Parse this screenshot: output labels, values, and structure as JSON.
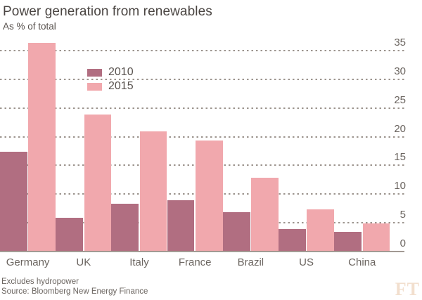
{
  "header": {
    "title": "Power generation from renewables",
    "subtitle": "As % of total"
  },
  "chart_data": {
    "type": "bar",
    "title": "Power generation from renewables",
    "subtitle": "As % of total",
    "categories": [
      "Germany",
      "UK",
      "Italy",
      "France",
      "Brazil",
      "US",
      "China"
    ],
    "series": [
      {
        "name": "2010",
        "color": "#b16e81",
        "values": [
          17.5,
          6,
          8.5,
          9,
          7,
          4,
          3.5
        ]
      },
      {
        "name": "2015",
        "color": "#f1a8ad",
        "values": [
          36.5,
          24,
          21,
          19.5,
          13,
          7.5,
          5
        ]
      }
    ],
    "xlabel": "",
    "ylabel": "As % of total",
    "yticks": [
      0,
      5,
      10,
      15,
      20,
      25,
      30,
      35
    ],
    "ylim": [
      0,
      38
    ],
    "grid": "horizontal dotted, axis labels on right",
    "legend_position": "inside upper left"
  },
  "footer": {
    "note": "Excludes hydropower",
    "source": "Source: Bloomberg New Energy Finance",
    "logo": "FT"
  },
  "colors": {
    "background": "#ffffff",
    "title_text": "#4a4542",
    "axis_text": "#6b6560",
    "gridline": "#9c948e",
    "baseline": "#a29a93",
    "series_2010": "#b16e81",
    "series_2015": "#f1a8ad",
    "ft_logo": "#f2dfce"
  }
}
